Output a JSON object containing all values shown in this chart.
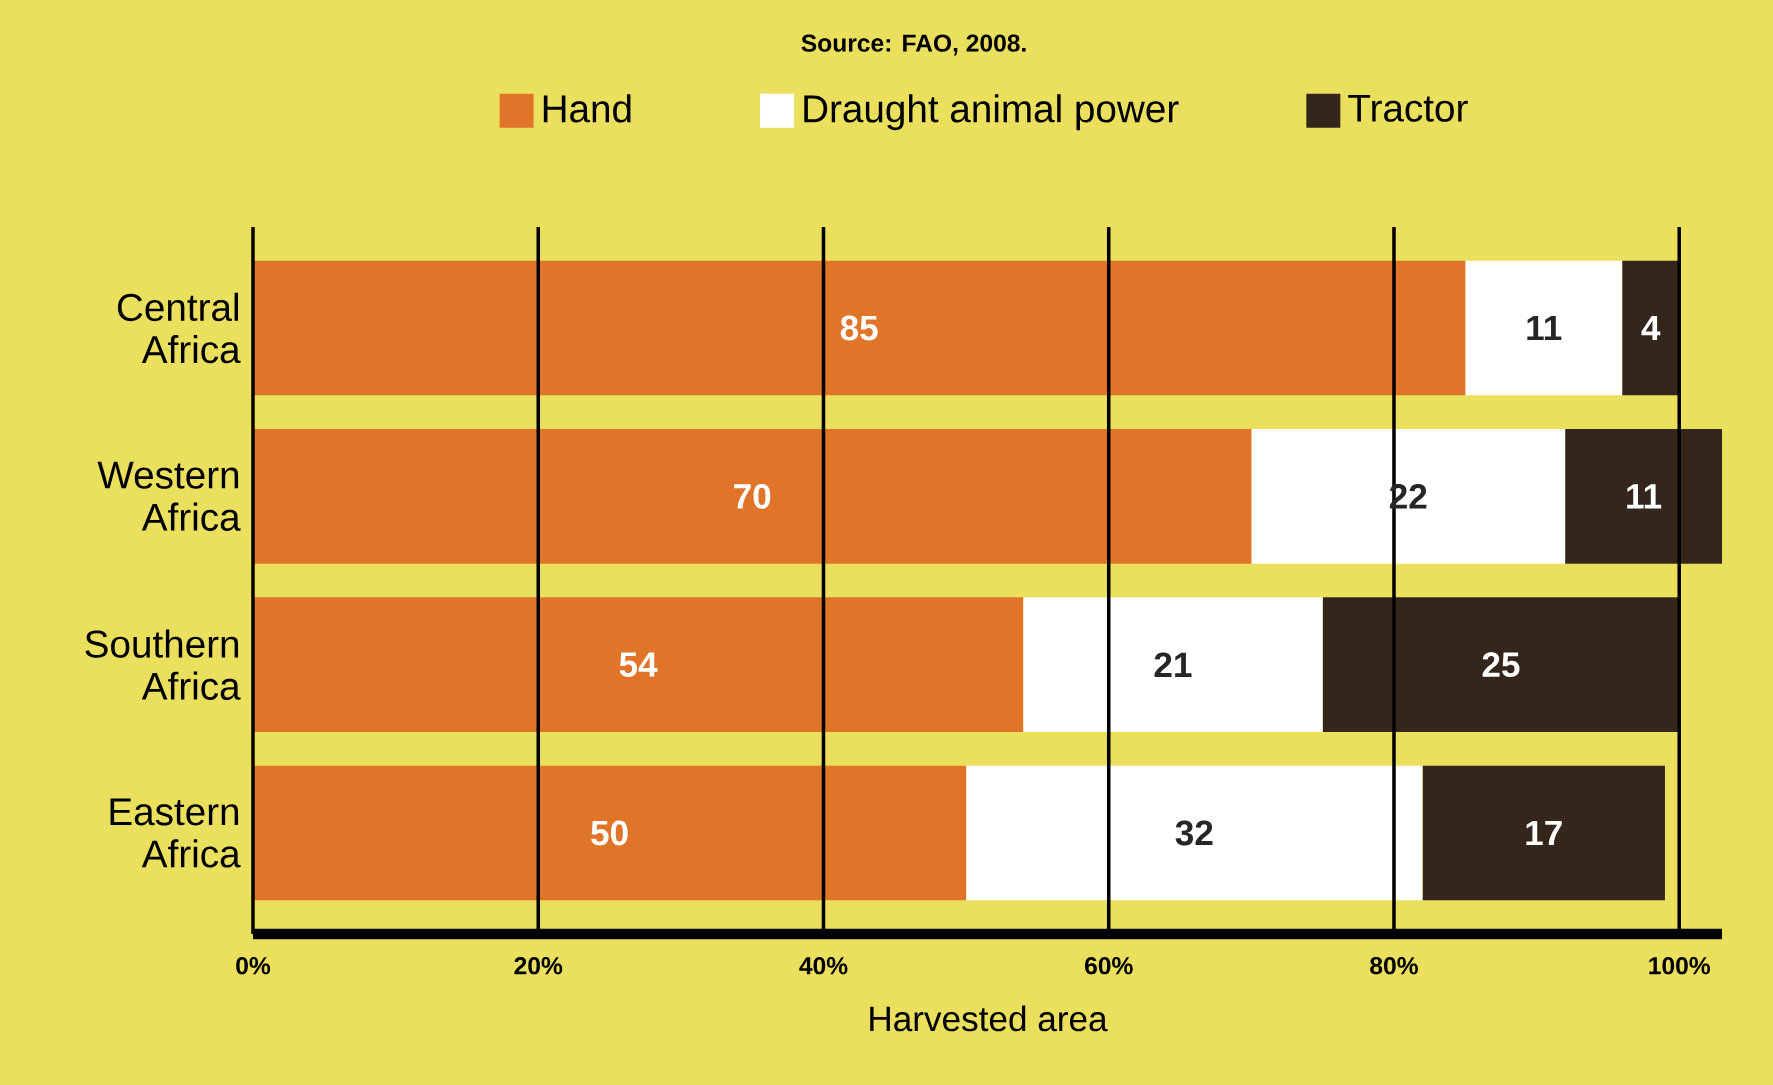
{
  "chart_data": {
    "type": "bar",
    "orientation": "horizontal",
    "stacked": true,
    "annotations": [
      "Source: FAO, 2008."
    ],
    "categories": [
      "Central Africa",
      "Western Africa",
      "Southern Africa",
      "Eastern Africa"
    ],
    "series": [
      {
        "name": "Hand",
        "color": "#e07428",
        "values": [
          85,
          70,
          54,
          50
        ]
      },
      {
        "name": "Draught animal power",
        "color": "#ffffff",
        "values": [
          11,
          22,
          21,
          32
        ]
      },
      {
        "name": "Tractor",
        "color": "#35261c",
        "values": [
          4,
          11,
          25,
          17
        ]
      }
    ],
    "xlim": [
      0,
      103
    ],
    "xticks": [
      {
        "value": 0,
        "label": "0%"
      },
      {
        "value": 20,
        "label": "20%"
      },
      {
        "value": 40,
        "label": "40%"
      },
      {
        "value": 60,
        "label": "60%"
      },
      {
        "value": 80,
        "label": "80%"
      },
      {
        "value": 100,
        "label": "100%"
      }
    ],
    "xlabel": "Harvested area",
    "grid": "x",
    "legend": "top",
    "data_labels": true
  }
}
